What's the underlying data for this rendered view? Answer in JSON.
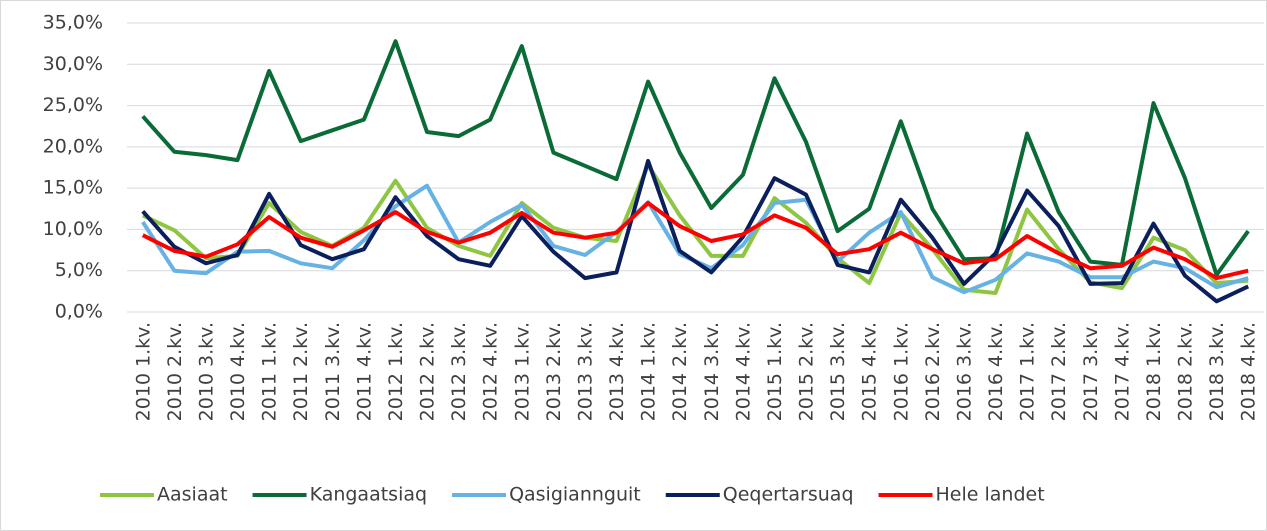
{
  "chart_data": {
    "type": "line",
    "categories": [
      "2010 1.kv.",
      "2010 2.kv.",
      "2010 3.kv.",
      "2010 4.kv.",
      "2011 1.kv.",
      "2011 2.kv.",
      "2011 3.kv.",
      "2011 4.kv.",
      "2012 1.kv.",
      "2012 2.kv.",
      "2012 3.kv.",
      "2012 4.kv.",
      "2013 1.kv.",
      "2013 2.kv.",
      "2013 3.kv.",
      "2013 4.kv.",
      "2014 1.kv.",
      "2014 2.kv.",
      "2014 3.kv.",
      "2014 4.kv.",
      "2015 1.kv.",
      "2015 2.kv.",
      "2015 3.kv.",
      "2015 4.kv.",
      "2016 1.kv.",
      "2016 2.kv.",
      "2016 3.kv.",
      "2016 4.kv.",
      "2017 1.kv.",
      "2017 2.kv.",
      "2017 3.kv.",
      "2017 4.kv.",
      "2018 1.kv.",
      "2018 2.kv.",
      "2018 3.kv.",
      "2018 4.kv."
    ],
    "series": [
      {
        "name": "Aasiaat",
        "color": "#8fc641",
        "values": [
          11.7,
          9.9,
          6.5,
          6.8,
          13.2,
          9.7,
          8.0,
          10.2,
          15.9,
          10.2,
          8.0,
          6.8,
          13.2,
          10.2,
          9.0,
          8.6,
          17.8,
          11.7,
          6.8,
          6.8,
          13.8,
          10.8,
          6.5,
          3.5,
          12.0,
          7.6,
          2.7,
          2.3,
          12.4,
          7.6,
          3.6,
          2.9,
          9.0,
          7.5,
          3.5,
          3.8
        ]
      },
      {
        "name": "Kangaatsiaq",
        "color": "#0b6b36",
        "values": [
          23.7,
          19.4,
          19.0,
          18.4,
          29.2,
          20.7,
          22.0,
          23.3,
          32.8,
          21.8,
          21.3,
          23.3,
          32.2,
          19.3,
          17.7,
          16.1,
          27.9,
          19.3,
          12.6,
          16.6,
          28.3,
          20.6,
          9.8,
          12.5,
          23.1,
          12.5,
          6.4,
          6.5,
          21.6,
          12.1,
          6.1,
          5.7,
          25.3,
          16.2,
          4.5,
          9.8
        ]
      },
      {
        "name": "Qasigiannguit",
        "color": "#66b2e4",
        "values": [
          10.9,
          5.0,
          4.7,
          7.3,
          7.4,
          5.9,
          5.3,
          8.7,
          12.8,
          15.3,
          8.4,
          10.9,
          13.0,
          8.0,
          6.9,
          9.7,
          13.3,
          7.0,
          5.3,
          8.1,
          13.2,
          13.6,
          6.1,
          9.6,
          12.1,
          4.2,
          2.4,
          3.9,
          7.1,
          6.1,
          4.2,
          4.2,
          6.1,
          5.3,
          3.0,
          4.1
        ]
      },
      {
        "name": "Qeqertarsuaq",
        "color": "#0b1f5c",
        "values": [
          12.2,
          7.9,
          5.9,
          6.9,
          14.3,
          8.1,
          6.4,
          7.6,
          13.9,
          9.2,
          6.4,
          5.6,
          11.6,
          7.3,
          4.1,
          4.8,
          18.3,
          7.4,
          4.8,
          9.1,
          16.2,
          14.2,
          5.7,
          4.8,
          13.6,
          9.0,
          3.4,
          7.1,
          14.7,
          10.4,
          3.4,
          3.5,
          10.7,
          4.4,
          1.3,
          3.1
        ]
      },
      {
        "name": "Hele landet",
        "color": "#ff0000",
        "values": [
          9.3,
          7.4,
          6.7,
          8.2,
          11.5,
          9.0,
          7.9,
          9.9,
          12.1,
          9.7,
          8.4,
          9.6,
          12.0,
          9.6,
          9.0,
          9.6,
          13.2,
          10.4,
          8.6,
          9.4,
          11.7,
          10.2,
          7.0,
          7.6,
          9.6,
          7.6,
          5.9,
          6.4,
          9.2,
          7.1,
          5.3,
          5.6,
          7.8,
          6.4,
          4.1,
          5.0
        ]
      }
    ],
    "ylim": [
      0,
      35
    ],
    "yticks": [
      {
        "value": 0,
        "label": "0,0%"
      },
      {
        "value": 5,
        "label": "5,0%"
      },
      {
        "value": 10,
        "label": "10,0%"
      },
      {
        "value": 15,
        "label": "15,0%"
      },
      {
        "value": 20,
        "label": "20,0%"
      },
      {
        "value": 25,
        "label": "25,0%"
      },
      {
        "value": 30,
        "label": "30,0%"
      },
      {
        "value": 35,
        "label": "35,0%"
      }
    ],
    "grid": true,
    "legend": "bottom"
  }
}
